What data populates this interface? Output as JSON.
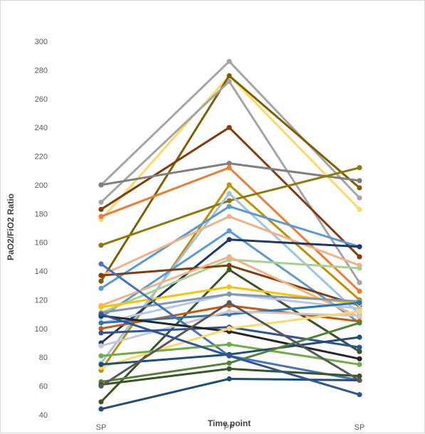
{
  "chart_data": {
    "type": "line",
    "title": "",
    "xlabel": "Time point",
    "ylabel": "PaO2/FiO2 Ratio",
    "categories": [
      "SP",
      "PP",
      "SP"
    ],
    "ylim": [
      40,
      300
    ],
    "yticks": [
      40,
      60,
      80,
      100,
      120,
      140,
      160,
      180,
      200,
      220,
      240,
      260,
      280,
      300
    ],
    "grid": false,
    "legend": "none",
    "series": [
      {
        "color": "#a5a5a5",
        "values": [
          200,
          286,
          191
        ]
      },
      {
        "color": "#ffd966",
        "values": [
          176,
          276,
          183
        ]
      },
      {
        "color": "#7f6000",
        "values": [
          133,
          276,
          198
        ]
      },
      {
        "color": "#a5a5a5",
        "values": [
          188,
          272,
          132
        ]
      },
      {
        "color": "#843c0c",
        "values": [
          183,
          240,
          150
        ]
      },
      {
        "color": "#808080",
        "values": [
          200,
          215,
          203
        ]
      },
      {
        "color": "#ed7d31",
        "values": [
          178,
          212,
          126
        ]
      },
      {
        "color": "#bf9000",
        "values": [
          71,
          200,
          120
        ]
      },
      {
        "color": "#8c7a06",
        "values": [
          158,
          189,
          212
        ]
      },
      {
        "color": "#9dc3e6",
        "values": [
          76,
          194,
          110
        ]
      },
      {
        "color": "#5b9bd5",
        "values": [
          128,
          185,
          157
        ]
      },
      {
        "color": "#f4b183",
        "values": [
          137,
          178,
          144
        ]
      },
      {
        "color": "#5b9bd5",
        "values": [
          108,
          168,
          104
        ]
      },
      {
        "color": "#1f3864",
        "values": [
          90,
          162,
          157
        ]
      },
      {
        "color": "#a9d18e",
        "values": [
          111,
          148,
          142
        ]
      },
      {
        "color": "#843c0c",
        "values": [
          137,
          144,
          116
        ]
      },
      {
        "color": "#385723",
        "values": [
          49,
          141,
          84
        ]
      },
      {
        "color": "#f4b183",
        "values": [
          116,
          150,
          108
        ]
      },
      {
        "color": "#ffc000",
        "values": [
          115,
          129,
          117
        ]
      },
      {
        "color": "#b4c7e7",
        "values": [
          104,
          124,
          114
        ]
      },
      {
        "color": "#8497b0",
        "values": [
          111,
          124,
          119
        ]
      },
      {
        "color": "#c55a11",
        "values": [
          100,
          116,
          105
        ]
      },
      {
        "color": "#2e75b6",
        "values": [
          104,
          110,
          118
        ]
      },
      {
        "color": "#c9c9c9",
        "values": [
          88,
          112,
          109
        ]
      },
      {
        "color": "#4472c4",
        "values": [
          145,
          81,
          64
        ]
      },
      {
        "color": "#2f5597",
        "values": [
          97,
          101,
          87
        ]
      },
      {
        "color": "#262626",
        "values": [
          109,
          98,
          79
        ]
      },
      {
        "color": "#ffd966",
        "values": [
          73,
          100,
          112
        ]
      },
      {
        "color": "#70ad47",
        "values": [
          81,
          89,
          75
        ]
      },
      {
        "color": "#1f4e79",
        "values": [
          75,
          82,
          94
        ]
      },
      {
        "color": "#548235",
        "values": [
          63,
          76,
          104
        ]
      },
      {
        "color": "#375623",
        "values": [
          61,
          72,
          67
        ]
      },
      {
        "color": "#1f4e79",
        "values": [
          44,
          65,
          64
        ]
      },
      {
        "color": "#595959",
        "values": [
          60,
          118,
          64
        ]
      },
      {
        "color": "#2f5597",
        "values": [
          110,
          81,
          54
        ]
      }
    ]
  }
}
